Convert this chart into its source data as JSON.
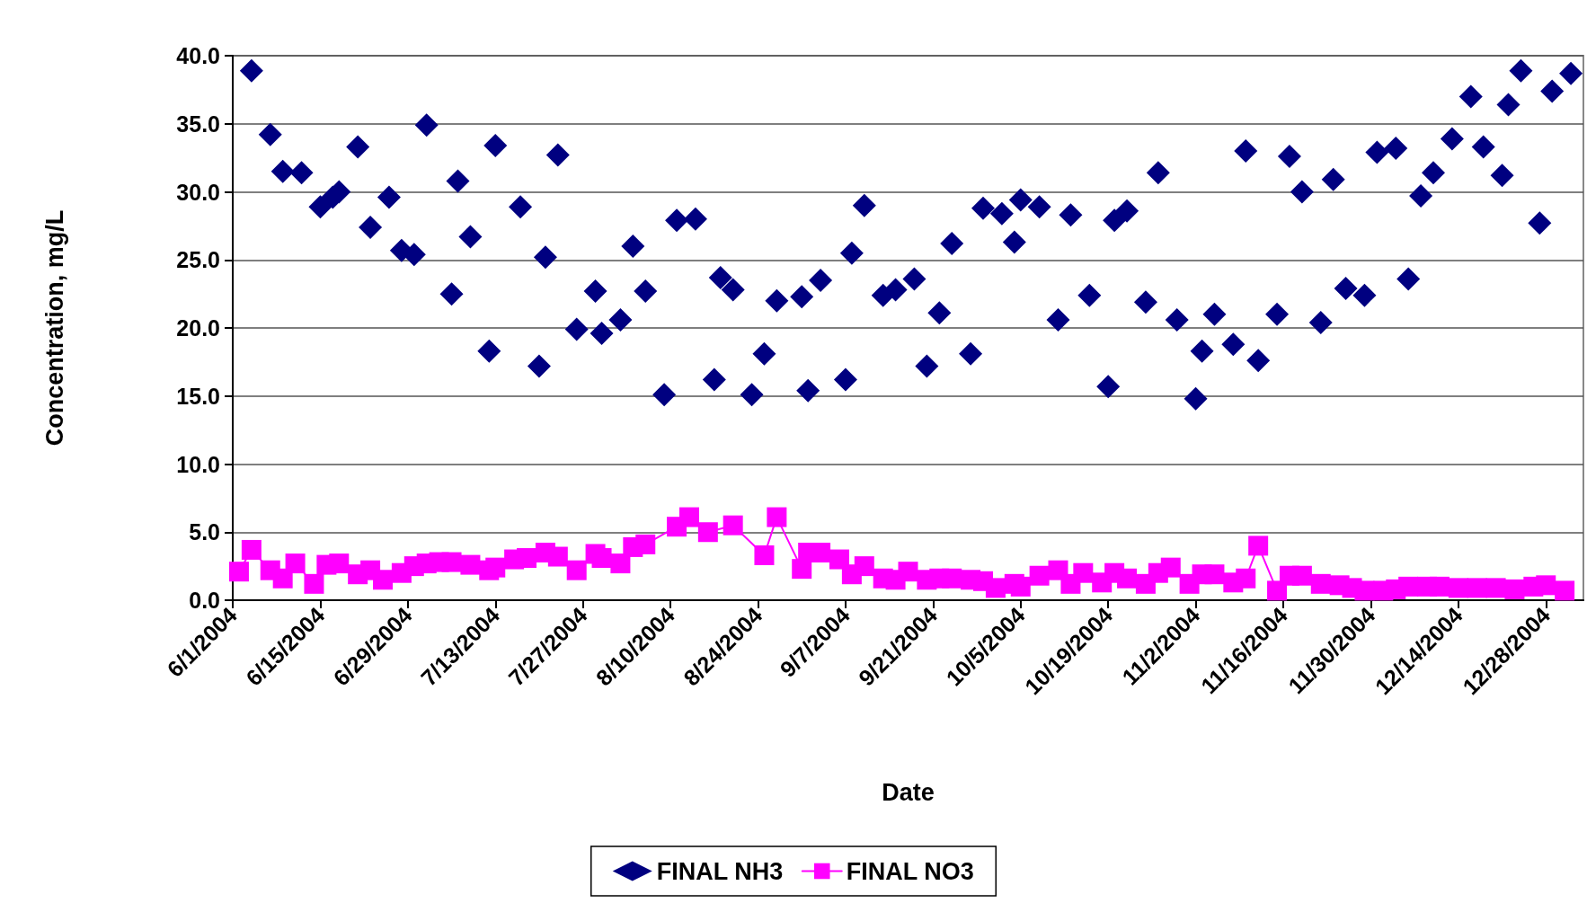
{
  "chart_data": {
    "type": "scatter",
    "xlabel": "Date",
    "ylabel": "Concentration, mg/L",
    "xlim": [
      "2004-06-01",
      "2005-01-03"
    ],
    "xticks": [
      {
        "value": "2004-06-01",
        "label": "6/1/2004"
      },
      {
        "value": "2004-06-15",
        "label": "6/15/2004"
      },
      {
        "value": "2004-06-29",
        "label": "6/29/2004"
      },
      {
        "value": "2004-07-13",
        "label": "7/13/2004"
      },
      {
        "value": "2004-07-27",
        "label": "7/27/2004"
      },
      {
        "value": "2004-08-10",
        "label": "8/10/2004"
      },
      {
        "value": "2004-08-24",
        "label": "8/24/2004"
      },
      {
        "value": "2004-09-07",
        "label": "9/7/2004"
      },
      {
        "value": "2004-09-21",
        "label": "9/21/2004"
      },
      {
        "value": "2004-10-05",
        "label": "10/5/2004"
      },
      {
        "value": "2004-10-19",
        "label": "10/19/2004"
      },
      {
        "value": "2004-11-02",
        "label": "11/2/2004"
      },
      {
        "value": "2004-11-16",
        "label": "11/16/2004"
      },
      {
        "value": "2004-11-30",
        "label": "11/30/2004"
      },
      {
        "value": "2004-12-14",
        "label": "12/14/2004"
      },
      {
        "value": "2004-12-28",
        "label": "12/28/2004"
      }
    ],
    "ylim": [
      0,
      40
    ],
    "yticks": [
      {
        "value": 0,
        "label": "0.0"
      },
      {
        "value": 5,
        "label": "5.0"
      },
      {
        "value": 10,
        "label": "10.0"
      },
      {
        "value": 15,
        "label": "15.0"
      },
      {
        "value": 20,
        "label": "20.0"
      },
      {
        "value": 25,
        "label": "25.0"
      },
      {
        "value": 30,
        "label": "30.0"
      },
      {
        "value": 35,
        "label": "35.0"
      },
      {
        "value": 40,
        "label": "40.0"
      }
    ],
    "grid": "y",
    "legend": "bottom",
    "series": [
      {
        "name": "FINAL NH3",
        "marker": "diamond",
        "color": "#000080",
        "x": [
          "2004-06-04",
          "2004-06-07",
          "2004-06-09",
          "2004-06-12",
          "2004-06-15",
          "2004-06-17",
          "2004-06-18",
          "2004-06-21",
          "2004-06-23",
          "2004-06-26",
          "2004-06-28",
          "2004-06-30",
          "2004-07-02",
          "2004-07-06",
          "2004-07-07",
          "2004-07-09",
          "2004-07-12",
          "2004-07-13",
          "2004-07-17",
          "2004-07-20",
          "2004-07-21",
          "2004-07-23",
          "2004-07-26",
          "2004-07-29",
          "2004-07-30",
          "2004-08-02",
          "2004-08-04",
          "2004-08-06",
          "2004-08-09",
          "2004-08-11",
          "2004-08-14",
          "2004-08-17",
          "2004-08-18",
          "2004-08-20",
          "2004-08-23",
          "2004-08-25",
          "2004-08-27",
          "2004-08-31",
          "2004-09-01",
          "2004-09-03",
          "2004-09-07",
          "2004-09-08",
          "2004-09-10",
          "2004-09-13",
          "2004-09-15",
          "2004-09-18",
          "2004-09-20",
          "2004-09-22",
          "2004-09-24",
          "2004-09-27",
          "2004-09-29",
          "2004-10-02",
          "2004-10-04",
          "2004-10-05",
          "2004-10-08",
          "2004-10-11",
          "2004-10-13",
          "2004-10-16",
          "2004-10-19",
          "2004-10-20",
          "2004-10-22",
          "2004-10-25",
          "2004-10-27",
          "2004-10-30",
          "2004-11-02",
          "2004-11-03",
          "2004-11-05",
          "2004-11-08",
          "2004-11-10",
          "2004-11-12",
          "2004-11-15",
          "2004-11-17",
          "2004-11-19",
          "2004-11-22",
          "2004-11-24",
          "2004-11-26",
          "2004-11-29",
          "2004-12-01",
          "2004-12-04",
          "2004-12-06",
          "2004-12-08",
          "2004-12-10",
          "2004-12-13",
          "2004-12-16",
          "2004-12-18",
          "2004-12-21",
          "2004-12-22",
          "2004-12-24",
          "2004-12-27",
          "2004-12-29",
          "2005-01-01"
        ],
        "values": [
          38.9,
          34.2,
          31.5,
          31.4,
          28.9,
          29.6,
          30.0,
          33.3,
          27.4,
          29.6,
          25.7,
          25.4,
          34.9,
          22.5,
          30.8,
          26.7,
          18.3,
          33.4,
          28.9,
          17.2,
          25.2,
          32.7,
          19.9,
          22.7,
          19.6,
          20.6,
          26.0,
          22.7,
          15.1,
          27.9,
          28.0,
          16.2,
          23.7,
          22.8,
          15.1,
          18.1,
          22.0,
          22.3,
          15.4,
          23.5,
          16.2,
          25.5,
          29.0,
          22.4,
          22.8,
          23.6,
          17.2,
          21.1,
          26.2,
          18.1,
          28.8,
          28.4,
          26.3,
          29.4,
          28.9,
          20.6,
          28.3,
          22.4,
          15.7,
          27.9,
          28.6,
          21.9,
          31.4,
          20.6,
          14.8,
          18.3,
          21.0,
          18.8,
          33.0,
          17.6,
          21.0,
          32.6,
          30.0,
          20.4,
          30.9,
          22.9,
          22.4,
          32.9,
          33.2,
          23.6,
          29.7,
          31.4,
          33.9,
          37.0,
          33.3,
          31.2,
          36.4,
          38.9,
          27.7,
          37.4,
          38.7
        ]
      },
      {
        "name": "FINAL NO3",
        "type": "line",
        "marker": "square",
        "color": "#ff00ff",
        "x": [
          "2004-06-02",
          "2004-06-04",
          "2004-06-07",
          "2004-06-09",
          "2004-06-11",
          "2004-06-14",
          "2004-06-16",
          "2004-06-18",
          "2004-06-21",
          "2004-06-23",
          "2004-06-25",
          "2004-06-28",
          "2004-06-30",
          "2004-07-02",
          "2004-07-04",
          "2004-07-06",
          "2004-07-09",
          "2004-07-12",
          "2004-07-13",
          "2004-07-16",
          "2004-07-18",
          "2004-07-21",
          "2004-07-23",
          "2004-07-26",
          "2004-07-29",
          "2004-07-30",
          "2004-08-02",
          "2004-08-04",
          "2004-08-06",
          "2004-08-11",
          "2004-08-13",
          "2004-08-16",
          "2004-08-20",
          "2004-08-25",
          "2004-08-27",
          "2004-08-31",
          "2004-09-01",
          "2004-09-03",
          "2004-09-06",
          "2004-09-08",
          "2004-09-10",
          "2004-09-13",
          "2004-09-15",
          "2004-09-17",
          "2004-09-20",
          "2004-09-22",
          "2004-09-24",
          "2004-09-27",
          "2004-09-29",
          "2004-10-01",
          "2004-10-04",
          "2004-10-05",
          "2004-10-08",
          "2004-10-11",
          "2004-10-13",
          "2004-10-15",
          "2004-10-18",
          "2004-10-20",
          "2004-10-22",
          "2004-10-25",
          "2004-10-27",
          "2004-10-29",
          "2004-11-01",
          "2004-11-03",
          "2004-11-05",
          "2004-11-08",
          "2004-11-10",
          "2004-11-12",
          "2004-11-15",
          "2004-11-17",
          "2004-11-19",
          "2004-11-22",
          "2004-11-25",
          "2004-11-27",
          "2004-11-29",
          "2004-12-02",
          "2004-12-04",
          "2004-12-06",
          "2004-12-09",
          "2004-12-11",
          "2004-12-14",
          "2004-12-17",
          "2004-12-20",
          "2004-12-23",
          "2004-12-26",
          "2004-12-28",
          "2004-12-31"
        ],
        "values": [
          2.1,
          3.7,
          2.2,
          1.6,
          2.7,
          1.2,
          2.6,
          2.7,
          1.9,
          2.2,
          1.5,
          2.0,
          2.5,
          2.7,
          2.8,
          2.8,
          2.6,
          2.2,
          2.4,
          3.0,
          3.1,
          3.5,
          3.2,
          2.2,
          3.4,
          3.1,
          2.7,
          3.9,
          4.1,
          5.4,
          6.1,
          5.0,
          5.5,
          3.3,
          6.1,
          2.3,
          3.5,
          3.5,
          3.0,
          1.9,
          2.5,
          1.6,
          1.5,
          2.1,
          1.5,
          1.6,
          1.6,
          1.5,
          1.4,
          0.9,
          1.2,
          1.0,
          1.8,
          2.2,
          1.2,
          2.0,
          1.3,
          2.0,
          1.6,
          1.2,
          2.0,
          2.4,
          1.2,
          1.9,
          1.9,
          1.3,
          1.6,
          4.0,
          0.7,
          1.8,
          1.8,
          1.2,
          1.1,
          0.9,
          0.7,
          0.7,
          0.8,
          1.0,
          1.0,
          1.0,
          0.9,
          0.9,
          0.9,
          0.8,
          1.0,
          1.1,
          0.7
        ]
      }
    ]
  }
}
